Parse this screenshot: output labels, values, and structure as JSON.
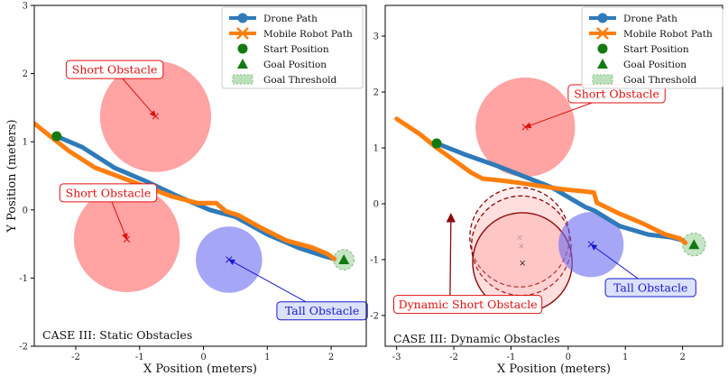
{
  "chart_data": [
    {
      "type": "scatter",
      "title": "CASE III: Static Obstacles",
      "xlabel": "X Position (meters)",
      "ylabel": "Y Position (meters)",
      "xlim": [
        -2.65,
        2.55
      ],
      "ylim": [
        -2.0,
        3.0
      ],
      "xticks": [
        -2,
        -1,
        0,
        1,
        2
      ],
      "yticks": [
        -2,
        -1,
        0,
        1,
        2,
        3
      ],
      "drone_path": [
        [
          -2.3,
          1.08
        ],
        [
          -1.9,
          0.92
        ],
        [
          -1.4,
          0.62
        ],
        [
          -0.9,
          0.42
        ],
        [
          -0.4,
          0.2
        ],
        [
          0.1,
          0.0
        ],
        [
          0.5,
          -0.1
        ],
        [
          1.0,
          -0.36
        ],
        [
          1.5,
          -0.56
        ],
        [
          1.9,
          -0.68
        ],
        [
          2.05,
          -0.72
        ]
      ],
      "robot_path": [
        [
          -2.65,
          1.27
        ],
        [
          -2.4,
          1.08
        ],
        [
          -2.1,
          0.86
        ],
        [
          -1.7,
          0.62
        ],
        [
          -1.3,
          0.48
        ],
        [
          -0.9,
          0.34
        ],
        [
          -0.5,
          0.2
        ],
        [
          -0.1,
          0.1
        ],
        [
          0.2,
          0.1
        ],
        [
          0.35,
          -0.02
        ],
        [
          0.55,
          -0.08
        ],
        [
          0.9,
          -0.26
        ],
        [
          1.3,
          -0.45
        ],
        [
          1.7,
          -0.55
        ],
        [
          1.95,
          -0.65
        ],
        [
          2.05,
          -0.72
        ]
      ],
      "start": [
        -2.3,
        1.08
      ],
      "goal": [
        2.2,
        -0.73
      ],
      "goal_threshold_radius": 0.16,
      "obstacles": [
        {
          "label": "Short Obstacle",
          "kind": "short",
          "center": [
            -0.75,
            1.37
          ],
          "radius": 0.87
        },
        {
          "label": "Short Obstacle",
          "kind": "short",
          "center": [
            -1.2,
            -0.43
          ],
          "radius": 0.83
        },
        {
          "label": "Tall Obstacle",
          "kind": "tall",
          "center": [
            0.4,
            -0.73
          ],
          "radius": 0.52
        }
      ],
      "annotations": [
        {
          "label": "Short Obstacle",
          "text_at": [
            -2.15,
            2.02
          ],
          "target": [
            -0.75,
            1.37
          ]
        },
        {
          "label": "Short Obstacle",
          "text_at": [
            -2.25,
            0.21
          ],
          "target": [
            -1.2,
            -0.43
          ]
        },
        {
          "label": "Tall Obstacle",
          "text_at": [
            1.15,
            -1.52
          ],
          "target": [
            0.4,
            -0.73
          ]
        }
      ],
      "case_label": "CASE III: Static Obstacles"
    },
    {
      "type": "scatter",
      "title": "CASE III: Dynamic Obstacles",
      "xlabel": "X Position (meters)",
      "ylabel": "",
      "xlim": [
        -3.2,
        2.7
      ],
      "ylim": [
        -2.55,
        3.55
      ],
      "xticks": [
        -3,
        -2,
        -1,
        0,
        1,
        2
      ],
      "yticks": [
        -2,
        -1,
        0,
        1,
        2,
        3
      ],
      "drone_path": [
        [
          -2.3,
          1.08
        ],
        [
          -1.8,
          0.88
        ],
        [
          -1.3,
          0.7
        ],
        [
          -0.8,
          0.5
        ],
        [
          -0.3,
          0.3
        ],
        [
          0.1,
          0.06
        ],
        [
          0.3,
          -0.06
        ],
        [
          0.45,
          -0.12
        ],
        [
          0.9,
          -0.4
        ],
        [
          1.4,
          -0.55
        ],
        [
          1.8,
          -0.6
        ],
        [
          2.0,
          -0.65
        ]
      ],
      "robot_path": [
        [
          -3.0,
          1.52
        ],
        [
          -2.6,
          1.25
        ],
        [
          -2.3,
          1.0
        ],
        [
          -2.0,
          0.78
        ],
        [
          -1.7,
          0.56
        ],
        [
          -1.5,
          0.45
        ],
        [
          -1.2,
          0.42
        ],
        [
          -0.9,
          0.38
        ],
        [
          -0.5,
          0.32
        ],
        [
          -0.1,
          0.26
        ],
        [
          0.3,
          0.22
        ],
        [
          0.45,
          0.2
        ],
        [
          0.5,
          0.02
        ],
        [
          0.9,
          -0.18
        ],
        [
          1.3,
          -0.35
        ],
        [
          1.7,
          -0.55
        ],
        [
          1.95,
          -0.62
        ],
        [
          2.05,
          -0.7
        ]
      ],
      "start": [
        -2.3,
        1.08
      ],
      "goal": [
        2.2,
        -0.73
      ],
      "goal_threshold_radius": 0.2,
      "obstacles": [
        {
          "label": "Short Obstacle",
          "kind": "short",
          "center": [
            -0.75,
            1.37
          ],
          "radius": 0.87
        },
        {
          "label": "Dynamic Short Obstacle",
          "kind": "dynamic",
          "center": [
            -0.8,
            -1.05
          ],
          "radius": 0.87
        },
        {
          "label": "Tall Obstacle",
          "kind": "tall",
          "center": [
            0.4,
            -0.73
          ],
          "radius": 0.57
        }
      ],
      "dynamic_ghosts": [
        {
          "center": [
            -0.85,
            -0.6
          ],
          "radius": 0.87
        },
        {
          "center": [
            -0.82,
            -0.75
          ],
          "radius": 0.87
        }
      ],
      "annotations": [
        {
          "label": "Short Obstacle",
          "text_at": [
            0.0,
            1.92
          ],
          "target": [
            -0.75,
            1.37
          ]
        },
        {
          "label": "Tall Obstacle",
          "text_at": [
            0.65,
            -1.55
          ],
          "target": [
            0.4,
            -0.73
          ]
        },
        {
          "label": "Dynamic Short Obstacle",
          "text_at": [
            -3.05,
            -1.85
          ],
          "target": [
            -2.05,
            -0.18
          ]
        }
      ],
      "case_label": "CASE III: Dynamic Obstacles"
    }
  ],
  "legend": [
    {
      "label": "Drone Path",
      "marker": "circle-line"
    },
    {
      "label": "Mobile Robot Path",
      "marker": "x-line"
    },
    {
      "label": "Start Position",
      "marker": "circle"
    },
    {
      "label": "Goal Position",
      "marker": "triangle"
    },
    {
      "label": "Goal Threshold",
      "marker": "patch"
    }
  ],
  "colors": {
    "drone": "#2f7ab8",
    "robot": "#ff7f0e",
    "start": "#117a11",
    "goal": "#117a11",
    "short_fill": "#ff6666",
    "tall_fill": "#6a6af0",
    "threshold": "#9fd39f",
    "dynamic": "#8b0a0a",
    "anno_red": "#e01010",
    "anno_blue": "#1a1ad0"
  }
}
